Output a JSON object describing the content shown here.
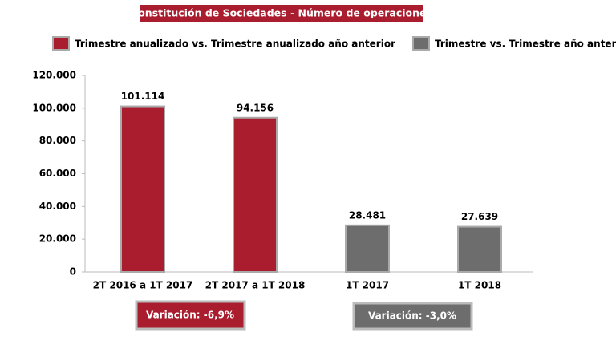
{
  "chart_data": {
    "type": "bar",
    "title": "Constitución de Sociedades - Número de operaciones",
    "categories": [
      "2T 2016 a 1T 2017",
      "2T 2017 a 1T 2018",
      "1T 2017",
      "1T 2018"
    ],
    "series": [
      {
        "name": "Trimestre anualizado vs. Trimestre anualizado año anterior",
        "color": "#a91d2e",
        "values": [
          101114,
          94156,
          null,
          null
        ],
        "value_labels": [
          "101.114",
          "94.156",
          null,
          null
        ]
      },
      {
        "name": "Trimestre vs. Trimestre año anterior",
        "color": "#6d6d6d",
        "values": [
          null,
          null,
          28481,
          27639
        ],
        "value_labels": [
          null,
          null,
          "28.481",
          "27.639"
        ]
      }
    ],
    "ylim": [
      0,
      120000
    ],
    "yticks": [
      0,
      {
        "value": 20000,
        "label": "20.000"
      },
      {
        "value": 40000,
        "label": "40.000"
      },
      {
        "value": 60000,
        "label": "60.000"
      },
      {
        "value": 80000,
        "label": "80.000"
      },
      {
        "value": 100000,
        "label": "100.000"
      },
      {
        "value": 120000,
        "label": "120.000"
      }
    ],
    "annotations": [
      "Variación:  -6,9%",
      "Variación: -3,0%"
    ],
    "grid": false
  }
}
